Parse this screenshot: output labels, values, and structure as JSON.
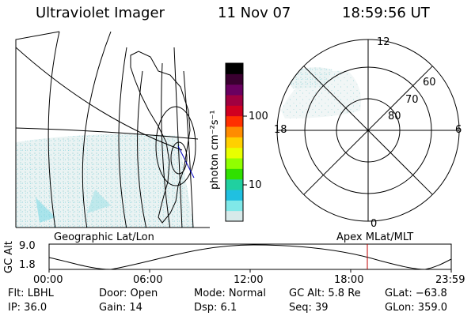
{
  "header": {
    "instrument": "Ultraviolet Imager",
    "date": "11 Nov 07",
    "time": "18:59:56 UT"
  },
  "colorbar": {
    "label": "photon cm⁻²s⁻¹",
    "ticks": [
      "100",
      "10"
    ],
    "colors": [
      "#000000",
      "#3a0030",
      "#6a0060",
      "#a00040",
      "#d00020",
      "#ff3000",
      "#ff8c00",
      "#ffd000",
      "#e8ff00",
      "#90ff00",
      "#30e000",
      "#20d0a0",
      "#20c0e0",
      "#80e8e8",
      "#d8eaea"
    ]
  },
  "polar_plot": {
    "mlt_labels": [
      "12",
      "18",
      "6",
      "0"
    ],
    "mlat_labels": [
      "60",
      "70",
      "80"
    ]
  },
  "bottom_labels": {
    "left": "Geographic Lat/Lon",
    "right": "Apex MLat/MLT"
  },
  "orbit_plot": {
    "ylabel": "GC Alt",
    "y_ticks": [
      "9.0",
      "1.8"
    ],
    "x_ticks": [
      "00:00",
      "06:00",
      "12:00",
      "18:00",
      "23:59"
    ]
  },
  "info": {
    "filter": "Flt: LBHL",
    "ip": "IP: 36.0",
    "door": "Door: Open",
    "gain": "Gain: 14",
    "mode": "Mode: Normal",
    "dsp": "Dsp:     6.1",
    "gc_alt": "GC Alt: 5.8 Re",
    "seq": "Seq: 39",
    "glat": "GLat: −63.8",
    "glon": "GLon: 359.0"
  }
}
